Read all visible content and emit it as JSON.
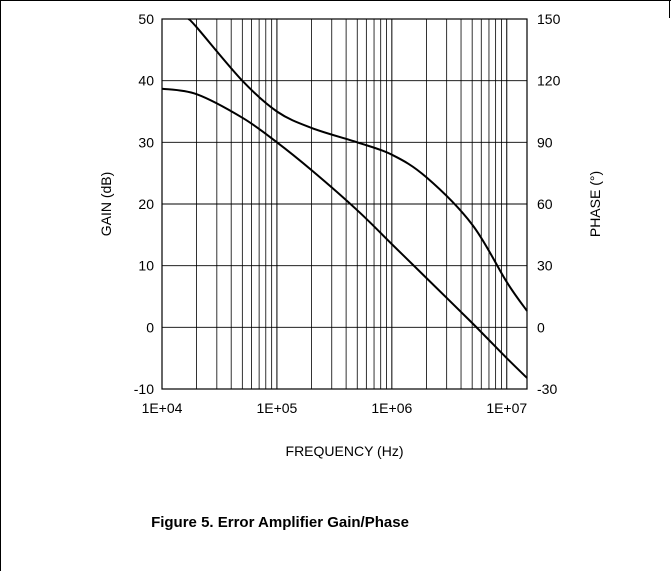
{
  "chart_data": {
    "type": "line",
    "title": "Figure 5. Error Amplifier Gain/Phase",
    "xlabel": "FREQUENCY (Hz)",
    "ylabel": "GAIN (dB)",
    "y2label": "PHASE (°)",
    "xscale": "log",
    "xlim": [
      10000,
      15000000
    ],
    "ylim": [
      -10,
      50
    ],
    "y2lim": [
      -30,
      150
    ],
    "xticks": [
      "1E+04",
      "1E+05",
      "1E+06",
      "1E+07"
    ],
    "yticks": [
      "-10",
      "0",
      "10",
      "20",
      "30",
      "40",
      "50"
    ],
    "y2ticks": [
      "-30",
      "0",
      "30",
      "60",
      "90",
      "120",
      "150"
    ],
    "grid": true,
    "series": [
      {
        "axis": "left",
        "x": [
          10000,
          20000,
          50000,
          100000,
          200000,
          500000,
          1000000,
          2000000,
          5000000,
          10000000,
          15000000
        ],
        "y": [
          38.7,
          37.8,
          34,
          30,
          25.5,
          19,
          13.5,
          8,
          0.7,
          -5,
          -8.2
        ]
      },
      {
        "axis": "right",
        "x": [
          17000,
          20000,
          50000,
          100000,
          200000,
          500000,
          1000000,
          2000000,
          5000000,
          10000000,
          15000000
        ],
        "y": [
          150,
          146,
          120,
          105,
          97,
          90,
          84,
          73,
          50,
          22,
          8
        ]
      }
    ]
  },
  "caption": "Figure 5. Error Amplifier Gain/Phase"
}
